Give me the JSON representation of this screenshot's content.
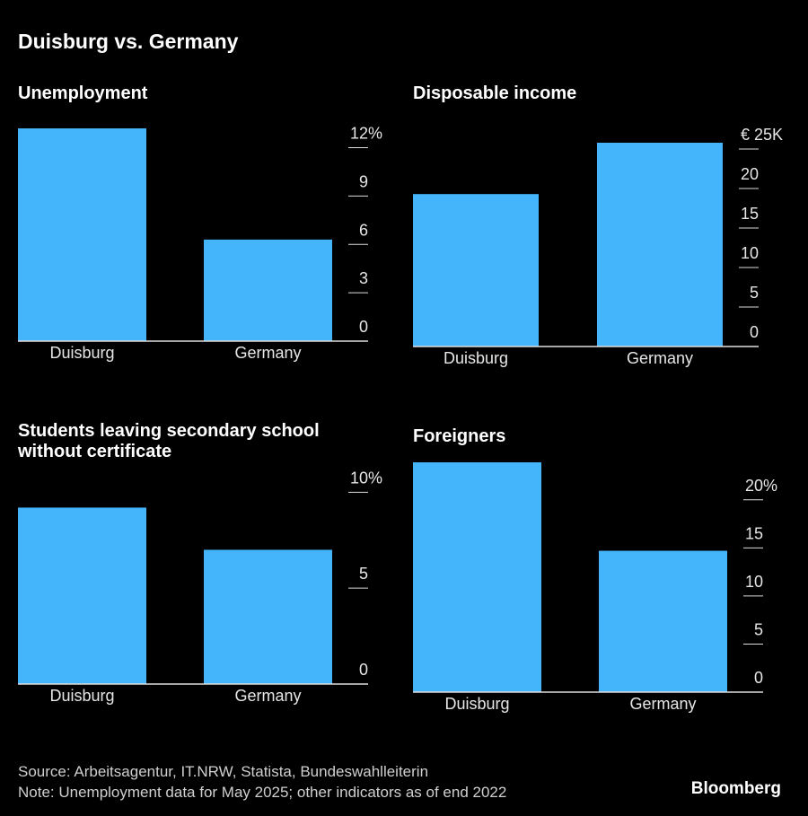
{
  "title": "Duisburg vs. Germany",
  "chart_data": [
    {
      "type": "bar",
      "title": "Unemployment",
      "categories": [
        "Duisburg",
        "Germany"
      ],
      "values": [
        13.2,
        6.3
      ],
      "color": "#44b4fb",
      "ylim": [
        0,
        13.2
      ],
      "yticks": [
        0,
        3,
        6,
        9,
        {
          "value": 12,
          "label": "12%"
        }
      ]
    },
    {
      "type": "bar",
      "title": "Disposable income",
      "categories": [
        "Duisburg",
        "Germany"
      ],
      "values": [
        19.3,
        25.8
      ],
      "color": "#44b4fb",
      "ylim": [
        0,
        25.8
      ],
      "yticks": [
        0,
        5,
        10,
        15,
        20,
        {
          "value": 25,
          "label": "€ 25K"
        }
      ]
    },
    {
      "type": "bar",
      "title": "Students leaving secondary school without certificate",
      "categories": [
        "Duisburg",
        "Germany"
      ],
      "values": [
        9.2,
        7.0
      ],
      "color": "#44b4fb",
      "ylim": [
        0,
        11
      ],
      "yticks": [
        0,
        5,
        {
          "value": 10,
          "label": "10%"
        }
      ]
    },
    {
      "type": "bar",
      "title": "Foreigners",
      "categories": [
        "Duisburg",
        "Germany"
      ],
      "values": [
        23.9,
        14.7
      ],
      "color": "#44b4fb",
      "ylim": [
        0,
        23.9
      ],
      "yticks": [
        0,
        5,
        10,
        15,
        {
          "value": 20,
          "label": "20%"
        }
      ]
    }
  ],
  "footer": {
    "source": "Source: Arbeitsagentur, IT.NRW, Statista, Bundeswahlleiterin",
    "note": "Note: Unemployment data for May 2025; other indicators as of end 2022",
    "brand": "Bloomberg"
  }
}
